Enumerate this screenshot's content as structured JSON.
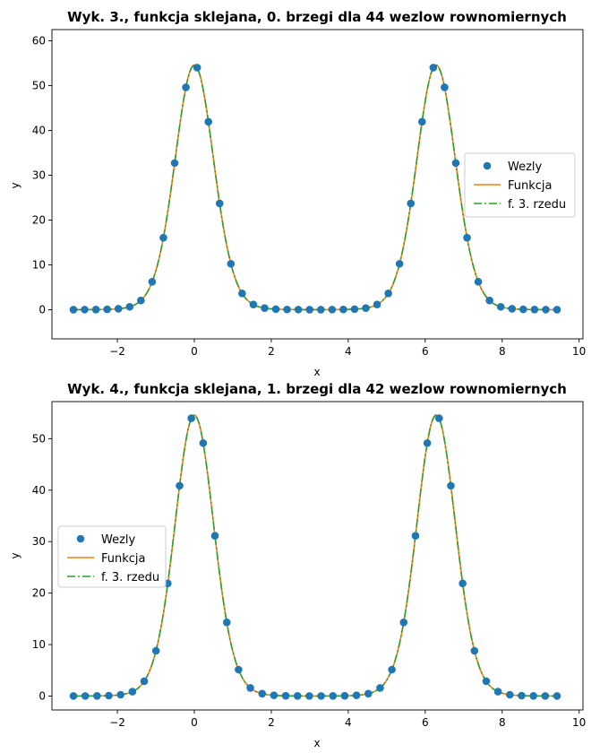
{
  "chart_data": [
    {
      "type": "line",
      "title": "Wyk. 3., funkcja sklejana, 0. brzegi dla 44 wezlow rownomiernych",
      "xlabel": "x",
      "ylabel": "y",
      "xlim": [
        -3.7,
        10.1
      ],
      "ylim": [
        -6.5,
        62.5
      ],
      "xticks": [
        -2,
        0,
        2,
        4,
        6,
        8,
        10
      ],
      "yticks": [
        0,
        10,
        20,
        30,
        40,
        50,
        60
      ],
      "function": "exp(4*cos(x))",
      "nodes_count": 44,
      "boundary": "0",
      "legend": {
        "position": "center-right",
        "entries": [
          "Wezly",
          "Funkcja",
          "f. 3. rzedu"
        ]
      },
      "series": [
        {
          "name": "Wezly",
          "kind": "scatter",
          "color": "#1f77b4"
        },
        {
          "name": "Funkcja",
          "kind": "line",
          "color": "#ff7f0e"
        },
        {
          "name": "f. 3. rzedu",
          "kind": "dashdot",
          "color": "#2ca02c"
        }
      ]
    },
    {
      "type": "line",
      "title": "Wyk. 4., funkcja sklejana, 1. brzegi dla 42 wezlow rownomiernych",
      "xlabel": "x",
      "ylabel": "y",
      "xlim": [
        -3.7,
        10.1
      ],
      "ylim": [
        -2.7,
        57.2
      ],
      "xticks": [
        -2,
        0,
        2,
        4,
        6,
        8,
        10
      ],
      "yticks": [
        0,
        10,
        20,
        30,
        40,
        50
      ],
      "function": "exp(4*cos(x))",
      "nodes_count": 42,
      "boundary": "1",
      "legend": {
        "position": "center-left",
        "entries": [
          "Wezly",
          "Funkcja",
          "f. 3. rzedu"
        ]
      },
      "series": [
        {
          "name": "Wezly",
          "kind": "scatter",
          "color": "#1f77b4"
        },
        {
          "name": "Funkcja",
          "kind": "line",
          "color": "#ff7f0e"
        },
        {
          "name": "f. 3. rzedu",
          "kind": "dashdot",
          "color": "#2ca02c"
        }
      ]
    }
  ]
}
